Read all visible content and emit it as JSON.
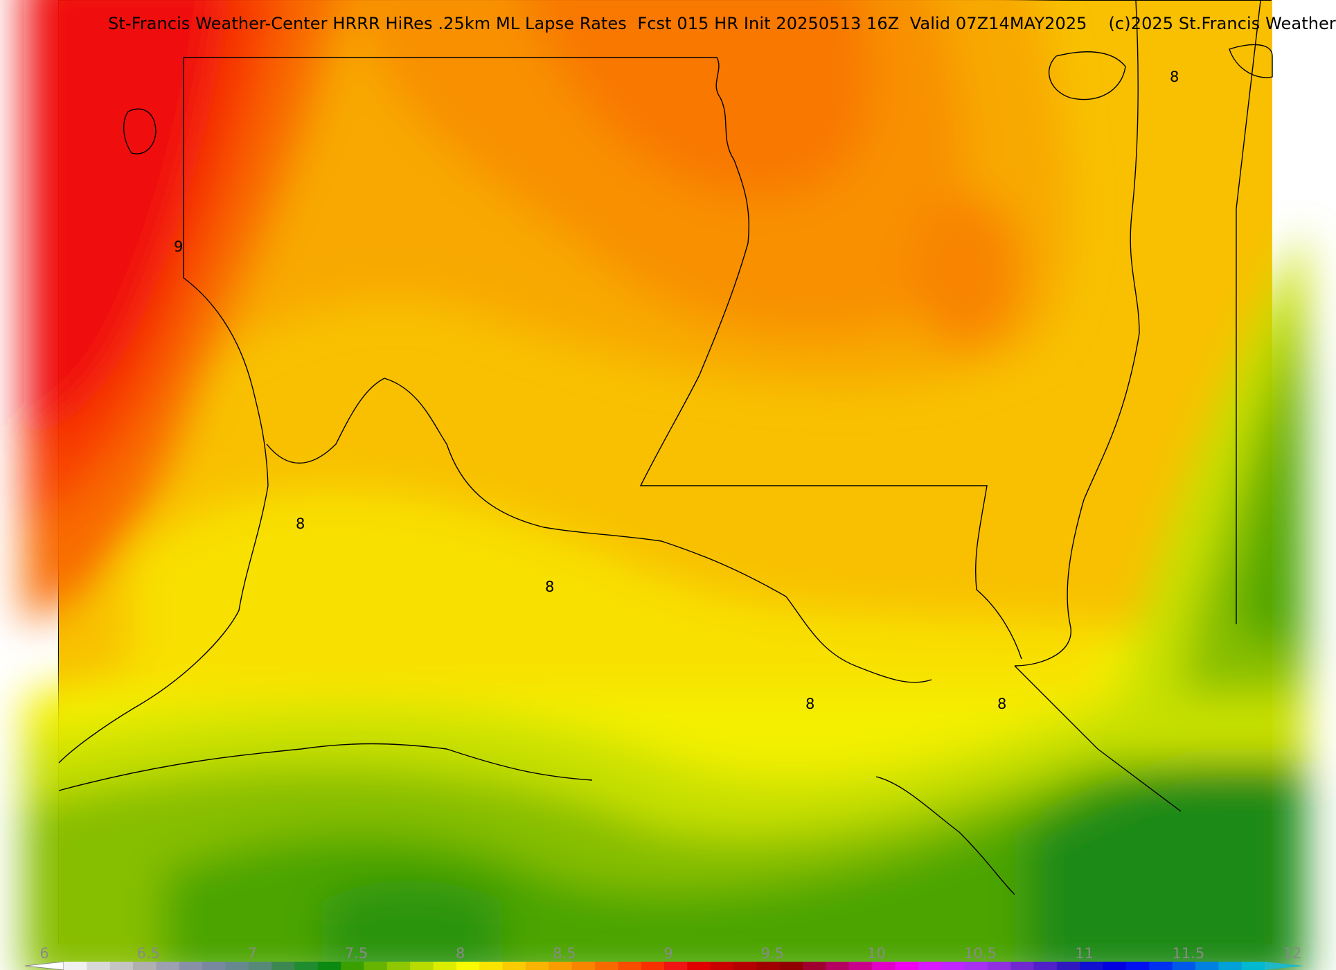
{
  "title": "St-Francis Weather-Center HRRR HiRes .25km ML Lapse Rates  Fcst 015 HR Init 20250513 16Z  Valid 07Z14MAY2025    (c)2025 St.Francis Weather",
  "contour_labels": [
    "9",
    "8",
    "8",
    "8",
    "8",
    "8"
  ],
  "colorbar": {
    "min": 6,
    "max": 12,
    "ticks": [
      "6",
      "6.5",
      "7",
      "7.5",
      "8",
      "8.5",
      "9",
      "9.5",
      "10",
      "10.5",
      "11",
      "11.5",
      "12"
    ],
    "colors": [
      "#f0f0f0",
      "#d8d8d8",
      "#c4c4c4",
      "#b0b0b0",
      "#9ca0b0",
      "#8890a8",
      "#7888a0",
      "#688890",
      "#588878",
      "#3c8850",
      "#208c30",
      "#0a8a10",
      "#3aa000",
      "#66b400",
      "#90c800",
      "#b8dc00",
      "#dced00",
      "#fafa00",
      "#f8e400",
      "#f8cc00",
      "#f8b400",
      "#f89c00",
      "#f88400",
      "#f86a00",
      "#f84c00",
      "#f83000",
      "#f01414",
      "#e00000",
      "#c80000",
      "#b40000",
      "#a00000",
      "#900000",
      "#a00030",
      "#b40060",
      "#c8008c",
      "#e000c8",
      "#f000f0",
      "#d818ff",
      "#c024ff",
      "#a830f0",
      "#9030e0",
      "#7028d0",
      "#5020c8",
      "#3018c0",
      "#1010d0",
      "#0000e0",
      "#0010f0",
      "#0030f0",
      "#0058e8",
      "#0080e0",
      "#00a0d8",
      "#00b8d0"
    ],
    "under_color": "#ffffff",
    "over_color": "#20b8c8"
  }
}
